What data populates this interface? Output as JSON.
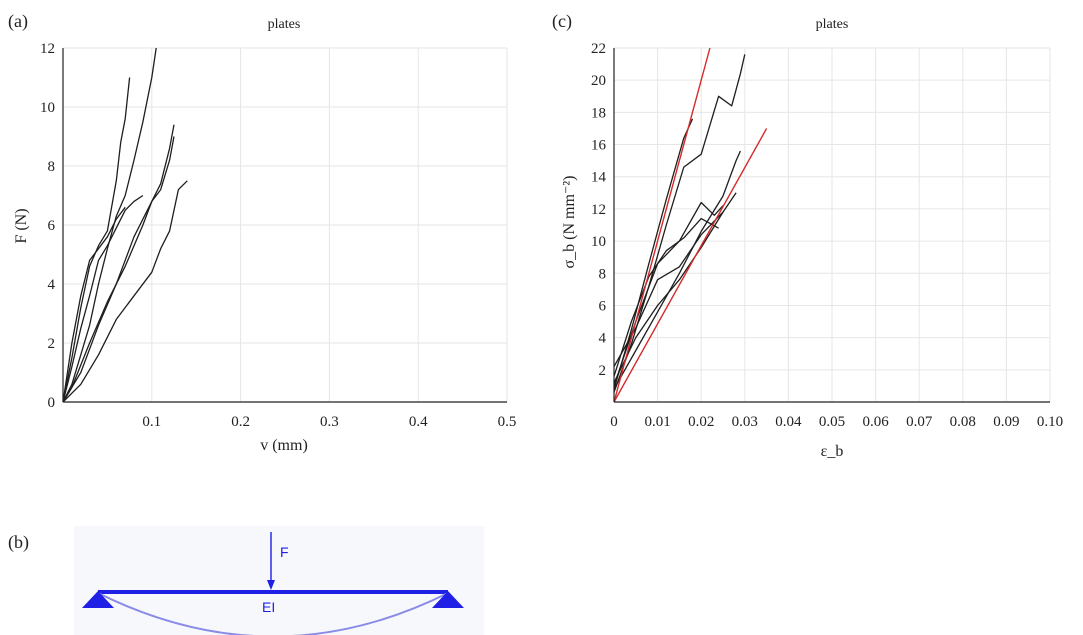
{
  "panels": {
    "a": {
      "label": "(a)"
    },
    "b": {
      "label": "(b)",
      "force_label": "F",
      "stiffness_label": "EI"
    },
    "c": {
      "label": "(c)"
    }
  },
  "colors": {
    "curve": "#1e1e1e",
    "fit": "#d62a2a",
    "beam": "#1f1fe6",
    "deflection": "#8a8ae8",
    "grid": "#e6e6e6"
  },
  "chart_data": [
    {
      "id": "a",
      "type": "line",
      "title": "plates",
      "xlabel": "v (mm)",
      "ylabel": "F (N)",
      "xlim": [
        0,
        0.5
      ],
      "ylim": [
        0,
        12
      ],
      "x_ticks": [
        0.1,
        0.2,
        0.3,
        0.4,
        0.5
      ],
      "x_tick_labels": [
        "0.1",
        "0.2",
        "0.3",
        "0.4",
        "0.5"
      ],
      "y_ticks": [
        0,
        2,
        4,
        6,
        8,
        10,
        12
      ],
      "y_tick_labels": [
        "0",
        "2",
        "4",
        "6",
        "8",
        "10",
        "12"
      ],
      "grid": true,
      "series": [
        {
          "x": [
            0,
            0.01,
            0.02,
            0.03,
            0.04,
            0.05,
            0.06,
            0.065,
            0.07,
            0.075
          ],
          "y": [
            0,
            1.5,
            3.2,
            4.6,
            5.3,
            5.8,
            7.5,
            8.8,
            9.6,
            11.0
          ]
        },
        {
          "x": [
            0,
            0.01,
            0.02,
            0.03,
            0.04,
            0.05,
            0.06,
            0.07,
            0.08,
            0.09,
            0.1,
            0.105
          ],
          "y": [
            0,
            0.6,
            1.6,
            2.6,
            4.0,
            5.2,
            6.3,
            7.0,
            8.2,
            9.5,
            11.0,
            12.0
          ]
        },
        {
          "x": [
            0,
            0.01,
            0.02,
            0.03,
            0.04,
            0.05,
            0.06,
            0.07,
            0.08,
            0.09
          ],
          "y": [
            0,
            1.2,
            2.5,
            3.6,
            4.8,
            5.3,
            5.9,
            6.5,
            6.8,
            7.0
          ]
        },
        {
          "x": [
            0,
            0.01,
            0.03,
            0.05,
            0.07,
            0.09,
            0.1,
            0.11,
            0.12,
            0.125
          ],
          "y": [
            0,
            0.5,
            2.0,
            3.4,
            4.6,
            6.0,
            6.8,
            7.4,
            8.6,
            9.4
          ]
        },
        {
          "x": [
            0,
            0.02,
            0.04,
            0.06,
            0.08,
            0.1,
            0.11,
            0.12,
            0.125
          ],
          "y": [
            0,
            1.0,
            2.6,
            4.0,
            5.6,
            6.8,
            7.2,
            8.2,
            9.0
          ]
        },
        {
          "x": [
            0,
            0.02,
            0.04,
            0.06,
            0.08,
            0.1,
            0.11,
            0.12,
            0.13,
            0.14
          ],
          "y": [
            0,
            0.6,
            1.6,
            2.8,
            3.6,
            4.4,
            5.2,
            5.8,
            7.2,
            7.5
          ]
        },
        {
          "x": [
            0,
            0.01,
            0.02,
            0.03,
            0.04,
            0.05,
            0.06,
            0.07
          ],
          "y": [
            0,
            2.0,
            3.6,
            4.8,
            5.2,
            5.6,
            6.2,
            6.6
          ]
        }
      ]
    },
    {
      "id": "c",
      "type": "line",
      "title": "plates",
      "xlabel": "ε_b",
      "ylabel": "σ_b (N mm⁻²)",
      "xlim": [
        0,
        0.1
      ],
      "ylim": [
        0,
        22
      ],
      "x_ticks": [
        0,
        0.01,
        0.02,
        0.03,
        0.04,
        0.05,
        0.06,
        0.07,
        0.08,
        0.09,
        0.1
      ],
      "x_tick_labels": [
        "0",
        "0.01",
        "0.02",
        "0.03",
        "0.04",
        "0.05",
        "0.06",
        "0.07",
        "0.08",
        "0.09",
        "0.10"
      ],
      "y_ticks": [
        2,
        4,
        6,
        8,
        10,
        12,
        14,
        16,
        18,
        20,
        22
      ],
      "y_tick_labels": [
        "2",
        "4",
        "6",
        "8",
        "10",
        "12",
        "14",
        "16",
        "18",
        "20",
        "22"
      ],
      "grid": true,
      "series": [
        {
          "x": [
            0,
            0.004,
            0.008,
            0.012,
            0.016,
            0.02,
            0.024,
            0.027,
            0.029,
            0.03
          ],
          "y": [
            0.6,
            3.6,
            7.2,
            11.0,
            14.6,
            15.4,
            19.0,
            18.4,
            20.4,
            21.6
          ]
        },
        {
          "x": [
            0,
            0.004,
            0.008,
            0.012,
            0.016,
            0.018
          ],
          "y": [
            0.8,
            4.5,
            8.6,
            12.6,
            16.4,
            17.6
          ]
        },
        {
          "x": [
            0,
            0.005,
            0.01,
            0.015,
            0.02,
            0.023,
            0.025
          ],
          "y": [
            1.0,
            5.0,
            8.6,
            10.0,
            12.4,
            11.6,
            12.2
          ]
        },
        {
          "x": [
            0,
            0.005,
            0.01,
            0.015,
            0.02,
            0.025,
            0.028,
            0.029
          ],
          "y": [
            0.8,
            3.2,
            5.6,
            8.0,
            10.6,
            12.8,
            15.0,
            15.6
          ]
        },
        {
          "x": [
            0,
            0.005,
            0.01,
            0.015,
            0.02,
            0.025,
            0.028
          ],
          "y": [
            1.2,
            4.0,
            6.0,
            7.6,
            9.6,
            11.8,
            13.0
          ]
        },
        {
          "x": [
            0,
            0.004,
            0.008,
            0.012,
            0.016,
            0.02,
            0.024
          ],
          "y": [
            1.6,
            5.0,
            7.8,
            9.4,
            10.2,
            11.4,
            10.8
          ]
        },
        {
          "x": [
            0,
            0.005,
            0.01,
            0.015,
            0.02,
            0.025
          ],
          "y": [
            2.2,
            4.6,
            7.6,
            8.4,
            10.4,
            11.8
          ]
        }
      ],
      "fit_lines": [
        {
          "x": [
            0,
            0.022
          ],
          "y": [
            0,
            22
          ]
        },
        {
          "x": [
            0,
            0.035
          ],
          "y": [
            0,
            17
          ]
        }
      ]
    }
  ]
}
